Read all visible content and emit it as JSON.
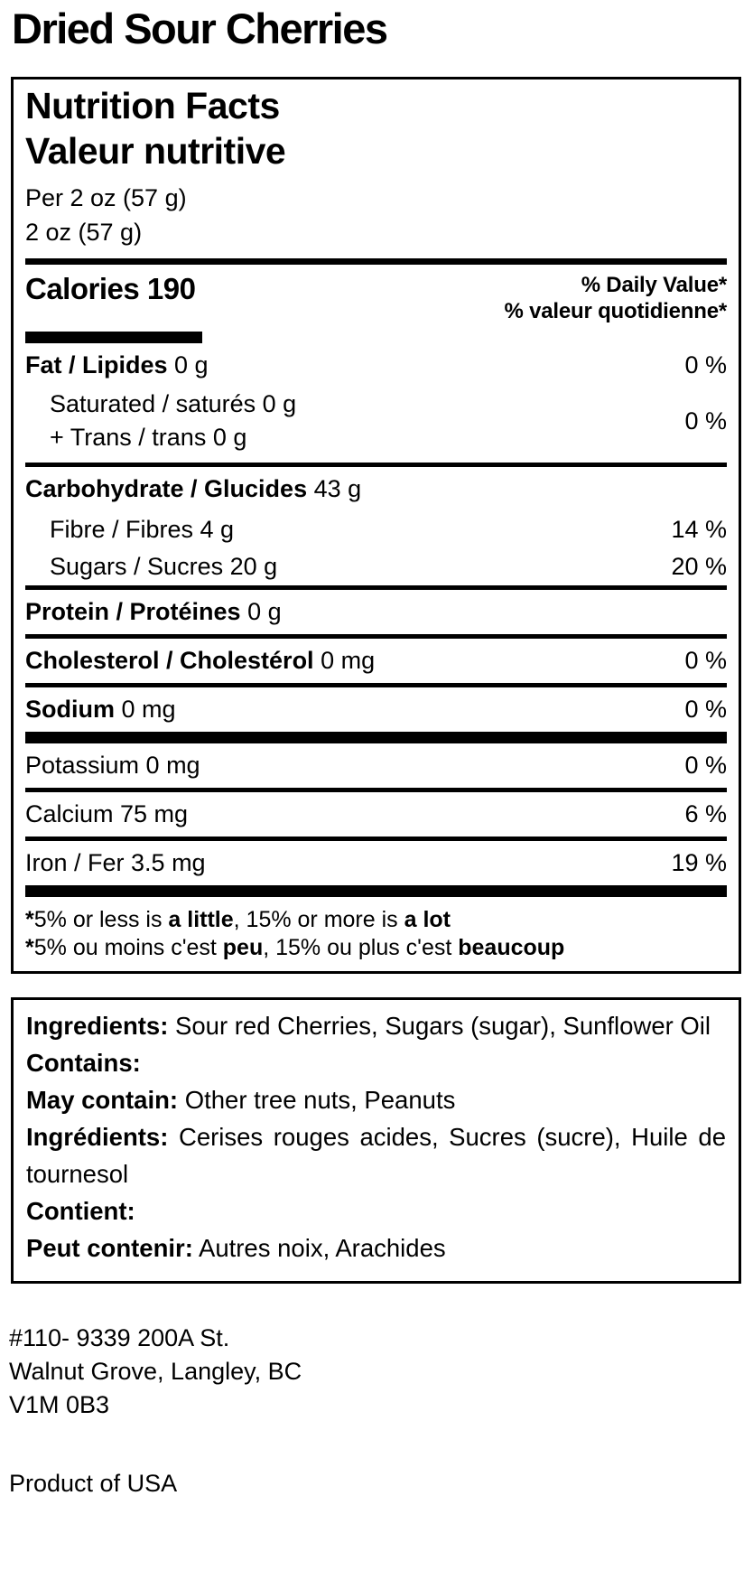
{
  "page": {
    "title": "Dried Sour Cherries",
    "address": {
      "line1": "#110- 9339 200A St.",
      "line2": "Walnut Grove, Langley, BC",
      "line3": "V1M 0B3"
    },
    "product_of": "Product of USA"
  },
  "nutrition_facts": {
    "title_en": "Nutrition Facts",
    "title_fr": "Valeur nutritive",
    "serving_en": "Per 2 oz (57 g)",
    "serving_fr": "2 oz (57 g)",
    "calories_label": "Calories",
    "calories_value": "190",
    "dv_header_en": "% Daily Value*",
    "dv_header_fr": "% valeur quotidienne*",
    "rows": [
      {
        "bold": "Fat / Lipides",
        "rest": " 0 g",
        "pct": "0 %"
      },
      {
        "line1": "Saturated / saturés 0 g",
        "line2": "+ Trans / trans 0 g",
        "pct": "0 %"
      },
      {
        "bold": "Carbohydrate / Glucides",
        "rest": " 43 g",
        "pct": ""
      },
      {
        "bold": "",
        "rest": "Fibre / Fibres 4 g",
        "pct": "14 %"
      },
      {
        "bold": "",
        "rest": "Sugars / Sucres 20 g",
        "pct": "20 %"
      },
      {
        "bold": "Protein / Protéines",
        "rest": " 0 g",
        "pct": ""
      },
      {
        "bold": "Cholesterol / Cholestérol",
        "rest": " 0 mg",
        "pct": "0 %"
      },
      {
        "bold": "Sodium",
        "rest": " 0 mg",
        "pct": "0 %"
      },
      {
        "bold": "",
        "rest": "Potassium 0 mg",
        "pct": "0 %"
      },
      {
        "bold": "",
        "rest": "Calcium 75 mg",
        "pct": "6 %"
      },
      {
        "bold": "",
        "rest": "Iron / Fer 3.5 mg",
        "pct": "19 %"
      }
    ],
    "footnote_en": {
      "star": "*",
      "s1": "5% or less is ",
      "b1": "a little",
      "s2": ", 15% or more is ",
      "b2": "a lot"
    },
    "footnote_fr": {
      "star": "*",
      "s1": "5% ou moins c'est ",
      "b1": "peu",
      "s2": ", 15% ou plus c'est ",
      "b2": "beaucoup"
    }
  },
  "ingredients": {
    "label_en": "Ingredients:",
    "text_en": "Sour red Cherries, Sugars (sugar), Sunflower Oil",
    "contains_label_en": "Contains:",
    "may_contain_label_en": "May contain:",
    "may_contain_en": "Other tree nuts, Peanuts",
    "label_fr": "Ingrédients:",
    "text_fr": "Cerises rouges acides, Sucres (sucre), Huile de tournesol",
    "contains_label_fr": "Contient:",
    "may_contain_label_fr": "Peut contenir:",
    "may_contain_fr": "Autres noix, Arachides"
  }
}
